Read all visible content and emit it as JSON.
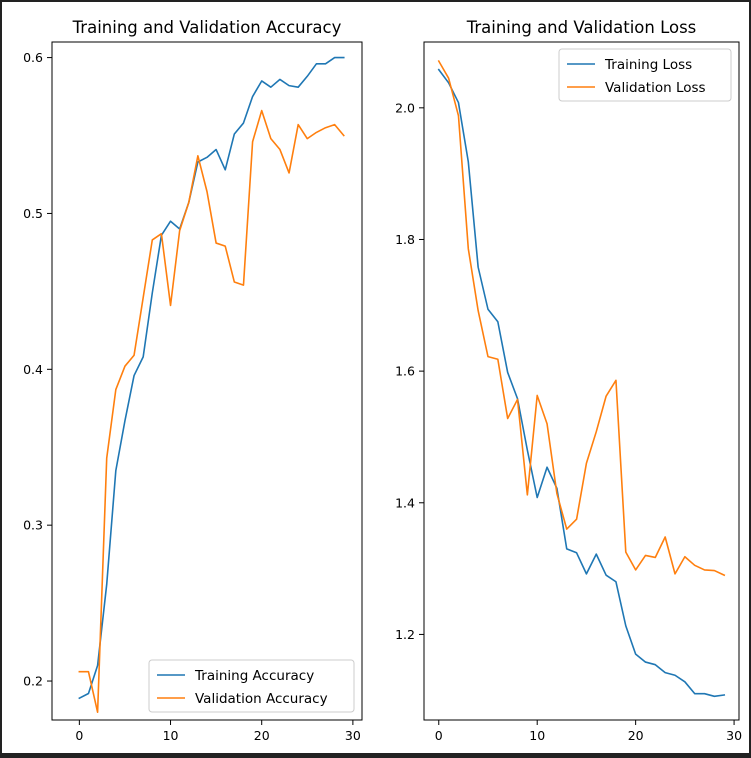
{
  "chart_data": [
    {
      "type": "line",
      "title": "Training and Validation Accuracy",
      "xlabel": "",
      "ylabel": "",
      "xlim": [
        -3,
        31
      ],
      "ylim": [
        0.175,
        0.61
      ],
      "xticks": [
        0,
        10,
        20,
        30
      ],
      "yticks": [
        0.2,
        0.3,
        0.4,
        0.5,
        0.6
      ],
      "ytick_labels": [
        "0.2",
        "0.3",
        "0.4",
        "0.5",
        "0.6"
      ],
      "grid": false,
      "legend_position": "lower-right",
      "x": [
        0,
        1,
        2,
        3,
        4,
        5,
        6,
        7,
        8,
        9,
        10,
        11,
        12,
        13,
        14,
        15,
        16,
        17,
        18,
        19,
        20,
        21,
        22,
        23,
        24,
        25,
        26,
        27,
        28,
        29
      ],
      "series": [
        {
          "name": "Training Accuracy",
          "color": "#1f77b4",
          "values": [
            0.189,
            0.192,
            0.21,
            0.262,
            0.335,
            0.367,
            0.396,
            0.408,
            0.449,
            0.486,
            0.495,
            0.49,
            0.507,
            0.533,
            0.536,
            0.541,
            0.528,
            0.551,
            0.558,
            0.575,
            0.585,
            0.581,
            0.586,
            0.582,
            0.581,
            0.588,
            0.596,
            0.596,
            0.6,
            0.6
          ]
        },
        {
          "name": "Validation Accuracy",
          "color": "#ff7f0e",
          "values": [
            0.206,
            0.206,
            0.18,
            0.343,
            0.387,
            0.402,
            0.409,
            0.446,
            0.483,
            0.487,
            0.441,
            0.489,
            0.507,
            0.537,
            0.514,
            0.481,
            0.479,
            0.456,
            0.454,
            0.546,
            0.566,
            0.548,
            0.541,
            0.526,
            0.557,
            0.548,
            0.552,
            0.555,
            0.557,
            0.55
          ]
        }
      ]
    },
    {
      "type": "line",
      "title": "Training and Validation Loss",
      "xlabel": "",
      "ylabel": "",
      "xlim": [
        -1.5,
        30.5
      ],
      "ylim": [
        1.07,
        2.1
      ],
      "xticks": [
        0,
        10,
        20,
        30
      ],
      "yticks": [
        1.2,
        1.4,
        1.6,
        1.8,
        2.0
      ],
      "ytick_labels": [
        "1.2",
        "1.4",
        "1.6",
        "1.8",
        "2.0"
      ],
      "grid": false,
      "legend_position": "upper-right",
      "x": [
        0,
        1,
        2,
        3,
        4,
        5,
        6,
        7,
        8,
        9,
        10,
        11,
        12,
        13,
        14,
        15,
        16,
        17,
        18,
        19,
        20,
        21,
        22,
        23,
        24,
        25,
        26,
        27,
        28,
        29
      ],
      "series": [
        {
          "name": "Training Loss",
          "color": "#1f77b4",
          "values": [
            2.058,
            2.038,
            2.008,
            1.918,
            1.758,
            1.694,
            1.675,
            1.598,
            1.558,
            1.48,
            1.408,
            1.454,
            1.422,
            1.33,
            1.324,
            1.292,
            1.322,
            1.29,
            1.28,
            1.213,
            1.17,
            1.158,
            1.154,
            1.142,
            1.138,
            1.128,
            1.11,
            1.11,
            1.106,
            1.108
          ]
        },
        {
          "name": "Validation Loss",
          "color": "#ff7f0e",
          "values": [
            2.071,
            2.045,
            1.988,
            1.786,
            1.692,
            1.622,
            1.618,
            1.528,
            1.557,
            1.412,
            1.563,
            1.52,
            1.414,
            1.36,
            1.375,
            1.46,
            1.508,
            1.562,
            1.586,
            1.325,
            1.298,
            1.32,
            1.317,
            1.348,
            1.292,
            1.318,
            1.305,
            1.298,
            1.297,
            1.29
          ]
        }
      ]
    }
  ]
}
